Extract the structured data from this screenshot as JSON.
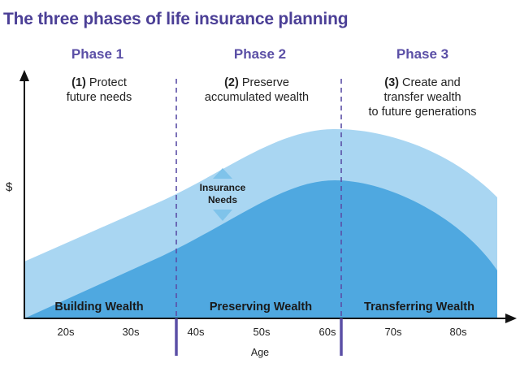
{
  "title": "The three phases of life insurance planning",
  "phases": [
    {
      "label": "Phase 1",
      "num": "(1)",
      "desc_lines": [
        "Protect",
        "future needs"
      ]
    },
    {
      "label": "Phase 2",
      "num": "(2)",
      "desc_lines": [
        "Preserve",
        "accumulated wealth"
      ]
    },
    {
      "label": "Phase 3",
      "num": "(3)",
      "desc_lines": [
        "Create and",
        "transfer wealth",
        "to future generations"
      ]
    }
  ],
  "stages": [
    "Building Wealth",
    "Preserving Wealth",
    "Transferring Wealth"
  ],
  "y_axis_label": "$",
  "x_axis_label": "Age",
  "x_ticks": [
    "20s",
    "30s",
    "40s",
    "50s",
    "60s",
    "70s",
    "80s"
  ],
  "insurance_needs_label": [
    "Insurance",
    "Needs"
  ],
  "colors": {
    "title": "#4b3f96",
    "phase": "#5b4fa6",
    "light_area": "#a9d6f2",
    "dark_area": "#4fa8e0",
    "divider": "#5b4fa6",
    "arrow": "#7fc3ea"
  }
}
